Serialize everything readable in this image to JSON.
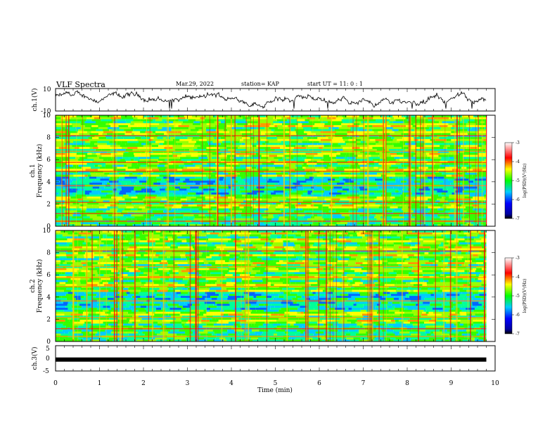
{
  "header": {
    "title": "VLF Spectra",
    "date": "Mar.29, 2022",
    "station": "station= KAP",
    "start": "start  UT =  11: 0  : 1"
  },
  "chart_data": [
    {
      "type": "line",
      "name": "ch1-waveform",
      "ylabel": "ch.1(V)",
      "ylim": [
        -10,
        10
      ],
      "yticks": [
        "10",
        "-10"
      ],
      "xlim": [
        0,
        10
      ],
      "data_end_min": 9.8
    },
    {
      "type": "heatmap",
      "name": "ch1-spectrogram",
      "ylabel_top": "ch.1",
      "ylabel": "Frequency (kHz)",
      "ylim": [
        0,
        10
      ],
      "yticks": [
        "0",
        "2",
        "4",
        "6",
        "8",
        "10"
      ],
      "xlim": [
        0,
        10
      ],
      "data_end_min": 9.8,
      "colorbar": {
        "min": -7,
        "max": -3,
        "ticks": [
          "-3",
          "-4",
          "-5",
          "-6",
          "-7"
        ],
        "label": "log(PSD)(V²/Hz)"
      }
    },
    {
      "type": "heatmap",
      "name": "ch2-spectrogram",
      "ylabel_top": "ch.2",
      "ylabel": "Frequency (kHz)",
      "ylim": [
        0,
        10
      ],
      "yticks": [
        "0",
        "2",
        "4",
        "6",
        "8",
        "10"
      ],
      "xlim": [
        0,
        10
      ],
      "data_end_min": 9.8,
      "colorbar": {
        "min": -7,
        "max": -3,
        "ticks": [
          "-3",
          "-4",
          "-5",
          "-6",
          "-7"
        ],
        "label": "log(PSD)(V²/Hz)"
      }
    },
    {
      "type": "line",
      "name": "ch3-waveform",
      "ylabel": "ch.3(V)",
      "ylim": [
        -5,
        5
      ],
      "yticks": [
        "5",
        "0",
        "-5"
      ],
      "xlim": [
        0,
        10
      ],
      "data_end_min": 9.8,
      "level": -0.5
    }
  ],
  "xaxis": {
    "label": "Time (min)",
    "ticks": [
      "0",
      "1",
      "2",
      "3",
      "4",
      "5",
      "6",
      "7",
      "8",
      "9",
      "10"
    ]
  }
}
